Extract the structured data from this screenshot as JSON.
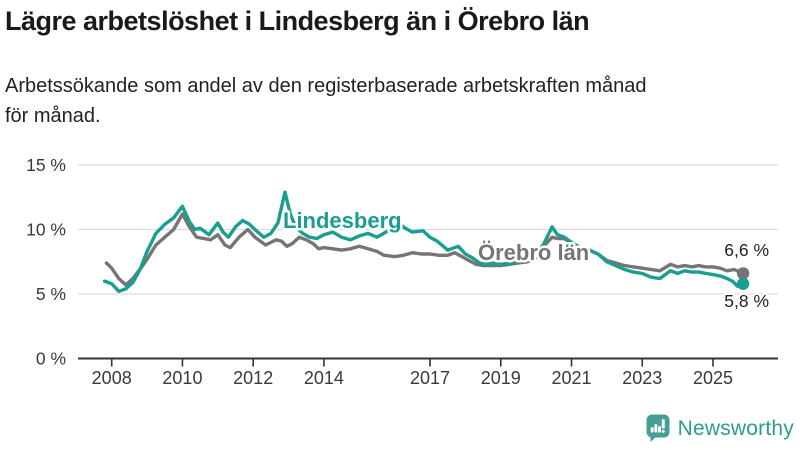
{
  "title": "Lägre arbetslöshet i Lindesberg än i Örebro län",
  "subtitle": {
    "line1": "Arbetssökande som andel av den registerbaserade arbetskraften månad",
    "line2": "för månad."
  },
  "branding": {
    "logo_text": "Newsworthy",
    "logo_icon": "bar-chart-speech-bubble",
    "logo_text_color": "#2b9c90",
    "logo_icon_color": "#479e95"
  },
  "colors": {
    "lindesberg": "#1a9e8f",
    "orebro": "#757575",
    "grid": "#dcdcdc",
    "axis": "#333333",
    "tick_label": "#3a3a3a",
    "end_label": "#222222",
    "background": "#ffffff"
  },
  "chart_data": {
    "type": "line",
    "title": "Lägre arbetslöshet i Lindesberg än i Örebro län",
    "xlabel": "",
    "ylabel": "",
    "unit": "%",
    "grid": "horizontal",
    "legend_position": "inline-labels",
    "ylim": [
      0,
      15.5
    ],
    "xlim": [
      2007.7,
      2026.3
    ],
    "y_ticks": [
      "15 %",
      "10 %",
      "5 %",
      "0 %"
    ],
    "y_tick_values": [
      15,
      10,
      5,
      0
    ],
    "x_tick_values": [
      2008,
      2010,
      2012,
      2014,
      2017,
      2019,
      2021,
      2023,
      2025
    ],
    "series": [
      {
        "name": "Lindesberg",
        "color": "#1a9e8f",
        "end_label": "5,8 %",
        "last_value": 5.8,
        "points": [
          [
            2007.8,
            6.0
          ],
          [
            2008.0,
            5.8
          ],
          [
            2008.2,
            5.2
          ],
          [
            2008.4,
            5.4
          ],
          [
            2008.6,
            5.9
          ],
          [
            2008.8,
            6.9
          ],
          [
            2009.0,
            8.3
          ],
          [
            2009.25,
            9.7
          ],
          [
            2009.5,
            10.4
          ],
          [
            2009.75,
            10.9
          ],
          [
            2010.0,
            11.8
          ],
          [
            2010.2,
            10.6
          ],
          [
            2010.35,
            10.0
          ],
          [
            2010.5,
            10.1
          ],
          [
            2010.75,
            9.6
          ],
          [
            2011.0,
            10.5
          ],
          [
            2011.15,
            9.8
          ],
          [
            2011.3,
            9.4
          ],
          [
            2011.5,
            10.2
          ],
          [
            2011.7,
            10.7
          ],
          [
            2011.9,
            10.4
          ],
          [
            2012.05,
            10.0
          ],
          [
            2012.3,
            9.4
          ],
          [
            2012.5,
            9.7
          ],
          [
            2012.7,
            10.5
          ],
          [
            2012.9,
            12.9
          ],
          [
            2013.05,
            11.2
          ],
          [
            2013.2,
            10.2
          ],
          [
            2013.4,
            9.7
          ],
          [
            2013.6,
            9.4
          ],
          [
            2013.8,
            9.3
          ],
          [
            2014.0,
            9.6
          ],
          [
            2014.25,
            9.8
          ],
          [
            2014.5,
            9.4
          ],
          [
            2014.75,
            9.2
          ],
          [
            2015.0,
            9.5
          ],
          [
            2015.25,
            9.7
          ],
          [
            2015.5,
            9.4
          ],
          [
            2015.75,
            9.8
          ],
          [
            2016.1,
            10.5
          ],
          [
            2016.3,
            10.1
          ],
          [
            2016.5,
            9.8
          ],
          [
            2016.8,
            9.9
          ],
          [
            2017.0,
            9.4
          ],
          [
            2017.2,
            9.1
          ],
          [
            2017.5,
            8.4
          ],
          [
            2017.8,
            8.7
          ],
          [
            2018.0,
            8.1
          ],
          [
            2018.2,
            7.8
          ],
          [
            2018.4,
            7.4
          ],
          [
            2018.6,
            7.3
          ],
          [
            2018.8,
            7.4
          ],
          [
            2019.0,
            7.3
          ],
          [
            2019.25,
            7.4
          ],
          [
            2019.5,
            7.5
          ],
          [
            2019.75,
            7.9
          ],
          [
            2020.0,
            8.2
          ],
          [
            2020.2,
            8.8
          ],
          [
            2020.45,
            10.2
          ],
          [
            2020.6,
            9.6
          ],
          [
            2020.8,
            9.4
          ],
          [
            2021.0,
            9.0
          ],
          [
            2021.25,
            8.6
          ],
          [
            2021.5,
            8.4
          ],
          [
            2021.75,
            8.1
          ],
          [
            2022.0,
            7.5
          ],
          [
            2022.25,
            7.2
          ],
          [
            2022.5,
            6.9
          ],
          [
            2022.75,
            6.7
          ],
          [
            2023.0,
            6.6
          ],
          [
            2023.25,
            6.3
          ],
          [
            2023.5,
            6.2
          ],
          [
            2023.8,
            6.8
          ],
          [
            2024.0,
            6.6
          ],
          [
            2024.2,
            6.8
          ],
          [
            2024.4,
            6.7
          ],
          [
            2024.6,
            6.7
          ],
          [
            2024.8,
            6.6
          ],
          [
            2025.0,
            6.5
          ],
          [
            2025.2,
            6.4
          ],
          [
            2025.4,
            6.2
          ],
          [
            2025.55,
            6.0
          ],
          [
            2025.7,
            5.6
          ],
          [
            2025.85,
            5.8
          ]
        ]
      },
      {
        "name": "Örebro län",
        "color": "#757575",
        "end_label": "6,6 %",
        "last_value": 6.6,
        "points": [
          [
            2007.85,
            7.4
          ],
          [
            2008.0,
            7.0
          ],
          [
            2008.2,
            6.2
          ],
          [
            2008.4,
            5.7
          ],
          [
            2008.6,
            6.2
          ],
          [
            2008.85,
            7.1
          ],
          [
            2009.0,
            7.7
          ],
          [
            2009.25,
            8.8
          ],
          [
            2009.5,
            9.4
          ],
          [
            2009.75,
            10.0
          ],
          [
            2010.0,
            11.2
          ],
          [
            2010.2,
            10.2
          ],
          [
            2010.4,
            9.4
          ],
          [
            2010.6,
            9.3
          ],
          [
            2010.8,
            9.2
          ],
          [
            2011.0,
            9.6
          ],
          [
            2011.2,
            8.8
          ],
          [
            2011.35,
            8.6
          ],
          [
            2011.6,
            9.4
          ],
          [
            2011.85,
            10.0
          ],
          [
            2012.05,
            9.4
          ],
          [
            2012.2,
            9.1
          ],
          [
            2012.35,
            8.8
          ],
          [
            2012.5,
            9.0
          ],
          [
            2012.65,
            9.2
          ],
          [
            2012.8,
            9.1
          ],
          [
            2012.95,
            8.7
          ],
          [
            2013.1,
            8.9
          ],
          [
            2013.3,
            9.4
          ],
          [
            2013.5,
            9.2
          ],
          [
            2013.7,
            8.9
          ],
          [
            2013.85,
            8.5
          ],
          [
            2014.0,
            8.6
          ],
          [
            2014.25,
            8.5
          ],
          [
            2014.5,
            8.4
          ],
          [
            2014.75,
            8.5
          ],
          [
            2015.0,
            8.7
          ],
          [
            2015.25,
            8.5
          ],
          [
            2015.5,
            8.3
          ],
          [
            2015.7,
            8.0
          ],
          [
            2016.0,
            7.9
          ],
          [
            2016.25,
            8.0
          ],
          [
            2016.5,
            8.2
          ],
          [
            2016.75,
            8.1
          ],
          [
            2017.0,
            8.1
          ],
          [
            2017.25,
            8.0
          ],
          [
            2017.5,
            8.0
          ],
          [
            2017.7,
            8.2
          ],
          [
            2017.9,
            7.9
          ],
          [
            2018.1,
            7.6
          ],
          [
            2018.3,
            7.3
          ],
          [
            2018.5,
            7.2
          ],
          [
            2018.75,
            7.2
          ],
          [
            2019.0,
            7.2
          ],
          [
            2019.25,
            7.3
          ],
          [
            2019.5,
            7.4
          ],
          [
            2019.75,
            7.5
          ],
          [
            2020.0,
            7.8
          ],
          [
            2020.25,
            8.8
          ],
          [
            2020.45,
            9.4
          ],
          [
            2020.6,
            9.3
          ],
          [
            2020.8,
            9.3
          ],
          [
            2021.0,
            8.9
          ],
          [
            2021.25,
            8.6
          ],
          [
            2021.5,
            8.4
          ],
          [
            2021.75,
            8.1
          ],
          [
            2022.0,
            7.6
          ],
          [
            2022.25,
            7.4
          ],
          [
            2022.5,
            7.2
          ],
          [
            2022.75,
            7.1
          ],
          [
            2023.0,
            7.0
          ],
          [
            2023.25,
            6.9
          ],
          [
            2023.5,
            6.8
          ],
          [
            2023.8,
            7.3
          ],
          [
            2024.0,
            7.1
          ],
          [
            2024.2,
            7.2
          ],
          [
            2024.4,
            7.1
          ],
          [
            2024.6,
            7.2
          ],
          [
            2024.8,
            7.1
          ],
          [
            2025.0,
            7.1
          ],
          [
            2025.2,
            7.0
          ],
          [
            2025.4,
            6.8
          ],
          [
            2025.6,
            6.9
          ],
          [
            2025.85,
            6.6
          ]
        ]
      }
    ]
  }
}
